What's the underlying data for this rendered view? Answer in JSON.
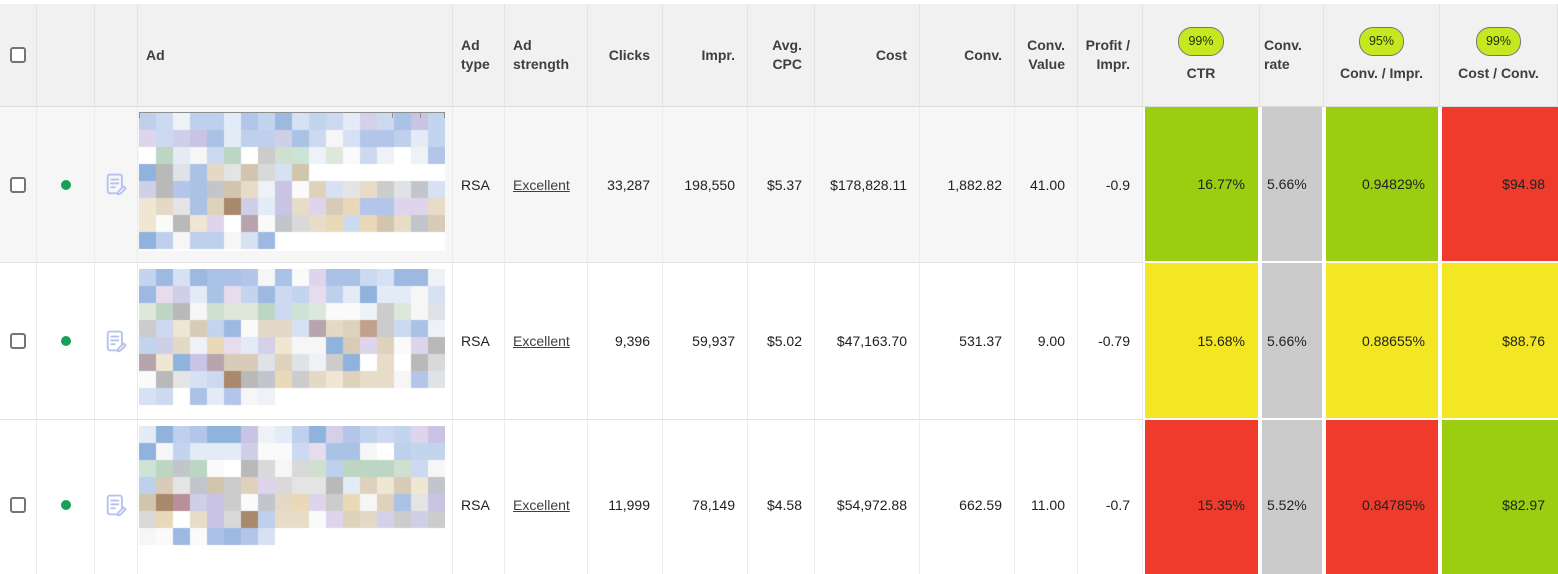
{
  "colors": {
    "green": "#9bcd11",
    "yellow": "#f3e723",
    "red": "#ee3b2b",
    "gray": "#cbcbcb",
    "badge_bg": "#c6e821",
    "status_dot": "#18a05a",
    "edit_icon": "#b7c3ef"
  },
  "header": {
    "ad": "Ad",
    "ad_type": "Ad type",
    "ad_strength": "Ad strength",
    "clicks": "Clicks",
    "impr": "Impr.",
    "avg_cpc": "Avg. CPC",
    "cost": "Cost",
    "conv": "Conv.",
    "conv_value": "Conv. Value",
    "profit_impr": "Profit / Impr.",
    "ctr": {
      "label": "CTR",
      "badge": "99%"
    },
    "conv_rate": "Conv. rate",
    "conv_impr": {
      "label": "Conv. / Impr.",
      "badge": "95%"
    },
    "cost_conv": {
      "label": "Cost / Conv.",
      "badge": "99%"
    }
  },
  "rows": [
    {
      "status": "enabled",
      "ad_preview": "blurred",
      "ad_type": "RSA",
      "ad_strength": "Excellent",
      "clicks": "33,287",
      "impr": "198,550",
      "avg_cpc": "$5.37",
      "cost": "$178,828.11",
      "conv": "1,882.82",
      "conv_value": "41.00",
      "profit_impr": "-0.9",
      "ctr": {
        "value": "16.77%",
        "color": "green"
      },
      "conv_rate": {
        "value": "5.66%",
        "color": "gray"
      },
      "conv_impr": {
        "value": "0.94829%",
        "color": "green"
      },
      "cost_conv": {
        "value": "$94.98",
        "color": "red"
      }
    },
    {
      "status": "enabled",
      "ad_preview": "blurred",
      "ad_type": "RSA",
      "ad_strength": "Excellent",
      "clicks": "9,396",
      "impr": "59,937",
      "avg_cpc": "$5.02",
      "cost": "$47,163.70",
      "conv": "531.37",
      "conv_value": "9.00",
      "profit_impr": "-0.79",
      "ctr": {
        "value": "15.68%",
        "color": "yellow"
      },
      "conv_rate": {
        "value": "5.66%",
        "color": "gray"
      },
      "conv_impr": {
        "value": "0.88655%",
        "color": "yellow"
      },
      "cost_conv": {
        "value": "$88.76",
        "color": "yellow"
      }
    },
    {
      "status": "enabled",
      "ad_preview": "blurred",
      "ad_type": "RSA",
      "ad_strength": "Excellent",
      "clicks": "11,999",
      "impr": "78,149",
      "avg_cpc": "$4.58",
      "cost": "$54,972.88",
      "conv": "662.59",
      "conv_value": "11.00",
      "profit_impr": "-0.7",
      "ctr": {
        "value": "15.35%",
        "color": "red"
      },
      "conv_rate": {
        "value": "5.52%",
        "color": "gray"
      },
      "conv_impr": {
        "value": "0.84785%",
        "color": "red"
      },
      "cost_conv": {
        "value": "$82.97",
        "color": "green"
      }
    }
  ]
}
